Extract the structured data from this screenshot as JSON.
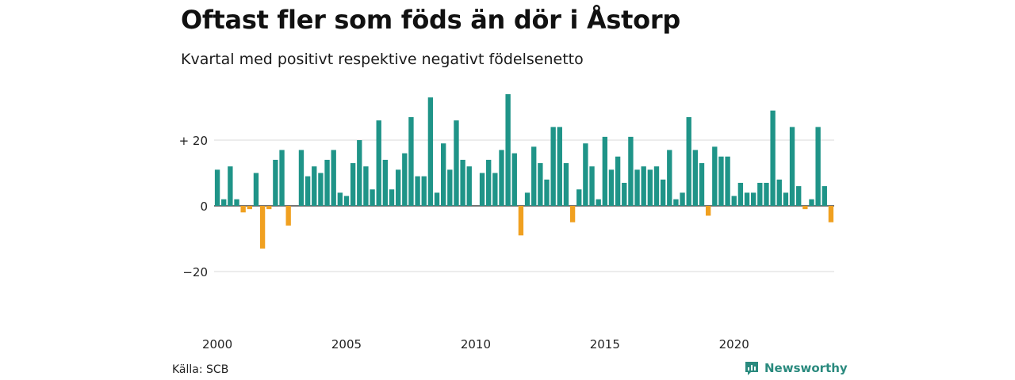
{
  "title": "Oftast fler som föds än dör i Åstorp",
  "subtitle": "Kvartal med positivt respektive negativt födelsenetto",
  "source": "Källa: SCB",
  "brand": "Newsworthy",
  "colors": {
    "positive": "#1f9488",
    "negative": "#f0a020",
    "grid": "#d9d9d9"
  },
  "chart_data": {
    "type": "bar",
    "x_start": 2000,
    "periods_per_year": 4,
    "ylim": [
      -30,
      40
    ],
    "yticks": [
      -20,
      0,
      20
    ],
    "ytick_labels": [
      "−20",
      "0",
      "+ 20"
    ],
    "xticks": [
      2000,
      2005,
      2010,
      2015,
      2020
    ],
    "values": [
      11,
      2,
      12,
      2,
      -2,
      -1,
      10,
      -13,
      -1,
      14,
      17,
      -6,
      0,
      17,
      9,
      12,
      10,
      14,
      17,
      4,
      3,
      13,
      20,
      12,
      5,
      26,
      14,
      5,
      11,
      16,
      27,
      9,
      9,
      33,
      4,
      19,
      11,
      26,
      14,
      12,
      0,
      10,
      14,
      10,
      17,
      34,
      16,
      -9,
      4,
      18,
      13,
      8,
      24,
      24,
      13,
      -5,
      5,
      19,
      12,
      2,
      21,
      11,
      15,
      7,
      21,
      11,
      12,
      11,
      12,
      8,
      17,
      2,
      4,
      27,
      17,
      13,
      -3,
      18,
      15,
      15,
      3,
      7,
      4,
      4,
      7,
      7,
      29,
      8,
      4,
      24,
      6,
      -1,
      2,
      24,
      6,
      -5
    ]
  }
}
